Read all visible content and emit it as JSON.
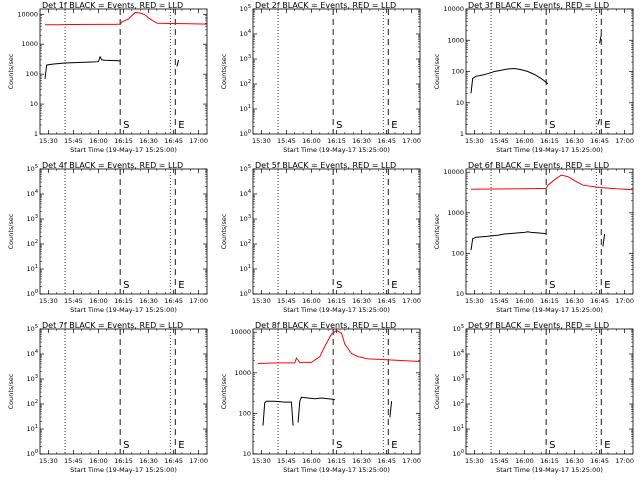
{
  "chart_data": [
    {
      "type": "line",
      "title": "Det 1f BLACK = Events, RED = LLD",
      "ylabel": "Counts/sec",
      "xlabel": "Start Time (19-May-17 15:25:00)",
      "yscale": "log",
      "ylim": [
        1,
        15000
      ],
      "yticks": [
        "1",
        "10",
        "100",
        "1000",
        "10000"
      ],
      "xticks": [
        "15:30",
        "15:45",
        "16:00",
        "16:15",
        "16:30",
        "16:45",
        "17:00"
      ],
      "markers": [
        "S",
        "E"
      ],
      "series": [
        {
          "color": "#000000",
          "x": [
            "15:28",
            "15:29",
            "15:31",
            "15:34",
            "15:36",
            "15:38",
            "15:40",
            "15:44",
            "15:48",
            "15:52",
            "15:56",
            "16:00",
            "16:01",
            "16:02",
            "16:04",
            "16:08",
            "16:12",
            "16:13"
          ],
          "y": [
            70,
            200,
            210,
            220,
            225,
            230,
            235,
            240,
            245,
            250,
            255,
            260,
            380,
            300,
            290,
            285,
            280,
            270
          ]
        },
        {
          "color": "#000000",
          "x": [
            "16:47",
            "16:48"
          ],
          "y": [
            180,
            300
          ]
        },
        {
          "color": "#ff0000",
          "x": [
            "15:28",
            "15:35",
            "15:45",
            "16:00",
            "16:10",
            "16:13",
            "16:14",
            "16:18",
            "16:20",
            "16:22",
            "16:25",
            "16:28",
            "16:30",
            "16:35",
            "16:45",
            "16:55",
            "17:05"
          ],
          "y": [
            4500,
            4500,
            4550,
            4600,
            4600,
            4700,
            5500,
            7000,
            9000,
            11500,
            11000,
            9500,
            7500,
            5000,
            4900,
            4800,
            4700
          ]
        }
      ]
    },
    {
      "type": "line",
      "title": "Det 2f BLACK = Events, RED = LLD",
      "ylabel": "Counts/sec",
      "xlabel": "Start Time (19-May-17 15:25:00)",
      "yscale": "log",
      "yticks": [
        "10^0",
        "10^1",
        "10^2",
        "10^3",
        "10^4",
        "10^5"
      ],
      "xticks": [
        "15:30",
        "15:45",
        "16:00",
        "16:15",
        "16:30",
        "16:45",
        "17:00"
      ],
      "markers": [
        "S",
        "E"
      ],
      "series": []
    },
    {
      "type": "line",
      "title": "Det 3f BLACK = Events, RED = LLD",
      "ylabel": "Counts/sec",
      "xlabel": "Start Time (19-May-17 15:25:00)",
      "yscale": "log",
      "yticks": [
        "1",
        "10",
        "100",
        "1000",
        "10000"
      ],
      "xticks": [
        "15:30",
        "15:45",
        "16:00",
        "16:15",
        "16:30",
        "16:45",
        "17:00"
      ],
      "markers": [
        "S",
        "E"
      ],
      "series": [
        {
          "color": "#000000",
          "x": [
            "15:28",
            "15:29",
            "15:31",
            "15:34",
            "15:38",
            "15:42",
            "15:46",
            "15:50",
            "15:54",
            "15:58",
            "16:02",
            "16:06",
            "16:10",
            "16:13",
            "16:14"
          ],
          "y": [
            20,
            60,
            70,
            75,
            85,
            100,
            110,
            120,
            125,
            115,
            100,
            80,
            60,
            45,
            40
          ]
        },
        {
          "color": "#000000",
          "x": [
            "16:45",
            "16:46"
          ],
          "y": [
            800,
            1500
          ]
        },
        {
          "color": "#000000",
          "x": [
            "16:44",
            "16:45"
          ],
          "y": [
            2,
            3
          ]
        }
      ]
    },
    {
      "type": "line",
      "title": "Det 4f BLACK = Events, RED = LLD",
      "ylabel": "Counts/sec",
      "xlabel": "Start Time (19-May-17 15:25:00)",
      "yscale": "log",
      "yticks": [
        "10^0",
        "10^1",
        "10^2",
        "10^3",
        "10^4",
        "10^5"
      ],
      "xticks": [
        "15:30",
        "15:45",
        "16:00",
        "16:15",
        "16:30",
        "16:45",
        "17:00"
      ],
      "markers": [
        "S",
        "E"
      ],
      "series": []
    },
    {
      "type": "line",
      "title": "Det 5f BLACK = Events, RED = LLD",
      "ylabel": "Counts/sec",
      "xlabel": "Start Time (19-May-17 15:25:00)",
      "yscale": "log",
      "yticks": [
        "10^0",
        "10^1",
        "10^2",
        "10^3",
        "10^4",
        "10^5"
      ],
      "xticks": [
        "15:30",
        "15:45",
        "16:00",
        "16:15",
        "16:30",
        "16:45",
        "17:00"
      ],
      "markers": [
        "S",
        "E"
      ],
      "series": []
    },
    {
      "type": "line",
      "title": "Det 6f BLACK = Events, RED = LLD",
      "ylabel": "Counts/sec",
      "xlabel": "Start Time (19-May-17 15:25:00)",
      "yscale": "log",
      "ylim": [
        10,
        12000
      ],
      "yticks": [
        "10",
        "100",
        "1000",
        "10000"
      ],
      "xticks": [
        "15:30",
        "15:45",
        "16:00",
        "16:15",
        "16:30",
        "16:45",
        "17:00"
      ],
      "markers": [
        "S",
        "E"
      ],
      "series": [
        {
          "color": "#000000",
          "x": [
            "15:28",
            "15:29",
            "15:31",
            "15:36",
            "15:40",
            "15:44",
            "15:48",
            "15:52",
            "15:56",
            "16:00",
            "16:02",
            "16:04",
            "16:08",
            "16:12",
            "16:13"
          ],
          "y": [
            120,
            230,
            250,
            260,
            270,
            280,
            300,
            310,
            320,
            330,
            340,
            330,
            320,
            310,
            300
          ]
        },
        {
          "color": "#000000",
          "x": [
            "16:47",
            "16:48"
          ],
          "y": [
            150,
            300
          ]
        },
        {
          "color": "#ff0000",
          "x": [
            "15:28",
            "15:40",
            "16:00",
            "16:13",
            "16:14",
            "16:18",
            "16:22",
            "16:26",
            "16:30",
            "16:35",
            "16:45",
            "16:55",
            "17:05"
          ],
          "y": [
            3800,
            3850,
            3900,
            4000,
            4800,
            6500,
            8500,
            7800,
            6200,
            4800,
            4200,
            3900,
            3700
          ]
        }
      ]
    },
    {
      "type": "line",
      "title": "Det 7f BLACK = Events, RED = LLD",
      "ylabel": "Counts/sec",
      "xlabel": "Start Time (19-May-17 15:25:00)",
      "yscale": "log",
      "yticks": [
        "10^0",
        "10^1",
        "10^2",
        "10^3",
        "10^4",
        "10^5"
      ],
      "xticks": [
        "15:30",
        "15:45",
        "16:00",
        "16:15",
        "16:30",
        "16:45",
        "17:00"
      ],
      "markers": [
        "S",
        "E"
      ],
      "series": []
    },
    {
      "type": "line",
      "title": "Det 8f BLACK = Events, RED = LLD",
      "ylabel": "Counts/sec",
      "xlabel": "Start Time (19-May-17 15:25:00)",
      "yscale": "log",
      "ylim": [
        10,
        12000
      ],
      "yticks": [
        "10",
        "100",
        "1000",
        "10000"
      ],
      "xticks": [
        "15:30",
        "15:45",
        "16:00",
        "16:15",
        "16:30",
        "16:45",
        "17:00"
      ],
      "markers": [
        "S",
        "E"
      ],
      "series": [
        {
          "color": "#000000",
          "x": [
            "15:31",
            "15:32",
            "15:33",
            "15:38",
            "15:44",
            "15:48",
            "15:49"
          ],
          "y": [
            50,
            180,
            200,
            200,
            190,
            190,
            50
          ]
        },
        {
          "color": "#000000",
          "x": [
            "15:52",
            "15:53",
            "15:54",
            "15:58",
            "16:02",
            "16:06",
            "16:10",
            "16:14"
          ],
          "y": [
            60,
            200,
            250,
            240,
            230,
            240,
            230,
            220
          ]
        },
        {
          "color": "#000000",
          "x": [
            "16:47",
            "16:48"
          ],
          "y": [
            80,
            200
          ]
        },
        {
          "color": "#ff0000",
          "x": [
            "15:28",
            "15:40",
            "15:50",
            "15:51",
            "15:53",
            "16:00",
            "16:05",
            "16:08",
            "16:12",
            "16:15",
            "16:18",
            "16:20",
            "16:24",
            "16:28",
            "16:34",
            "16:45",
            "16:55",
            "17:05"
          ],
          "y": [
            1700,
            1750,
            1750,
            2300,
            1800,
            1800,
            2500,
            4500,
            9000,
            11000,
            9500,
            5000,
            3000,
            2500,
            2200,
            2100,
            2000,
            1900
          ]
        }
      ]
    },
    {
      "type": "line",
      "title": "Det 9f BLACK = Events, RED = LLD",
      "ylabel": "Counts/sec",
      "xlabel": "Start Time (19-May-17 15:25:00)",
      "yscale": "log",
      "yticks": [
        "10^0",
        "10^1",
        "10^2",
        "10^3",
        "10^4",
        "10^5"
      ],
      "xticks": [
        "15:30",
        "15:45",
        "16:00",
        "16:15",
        "16:30",
        "16:45",
        "17:00"
      ],
      "markers": [
        "S",
        "E"
      ],
      "series": []
    }
  ]
}
